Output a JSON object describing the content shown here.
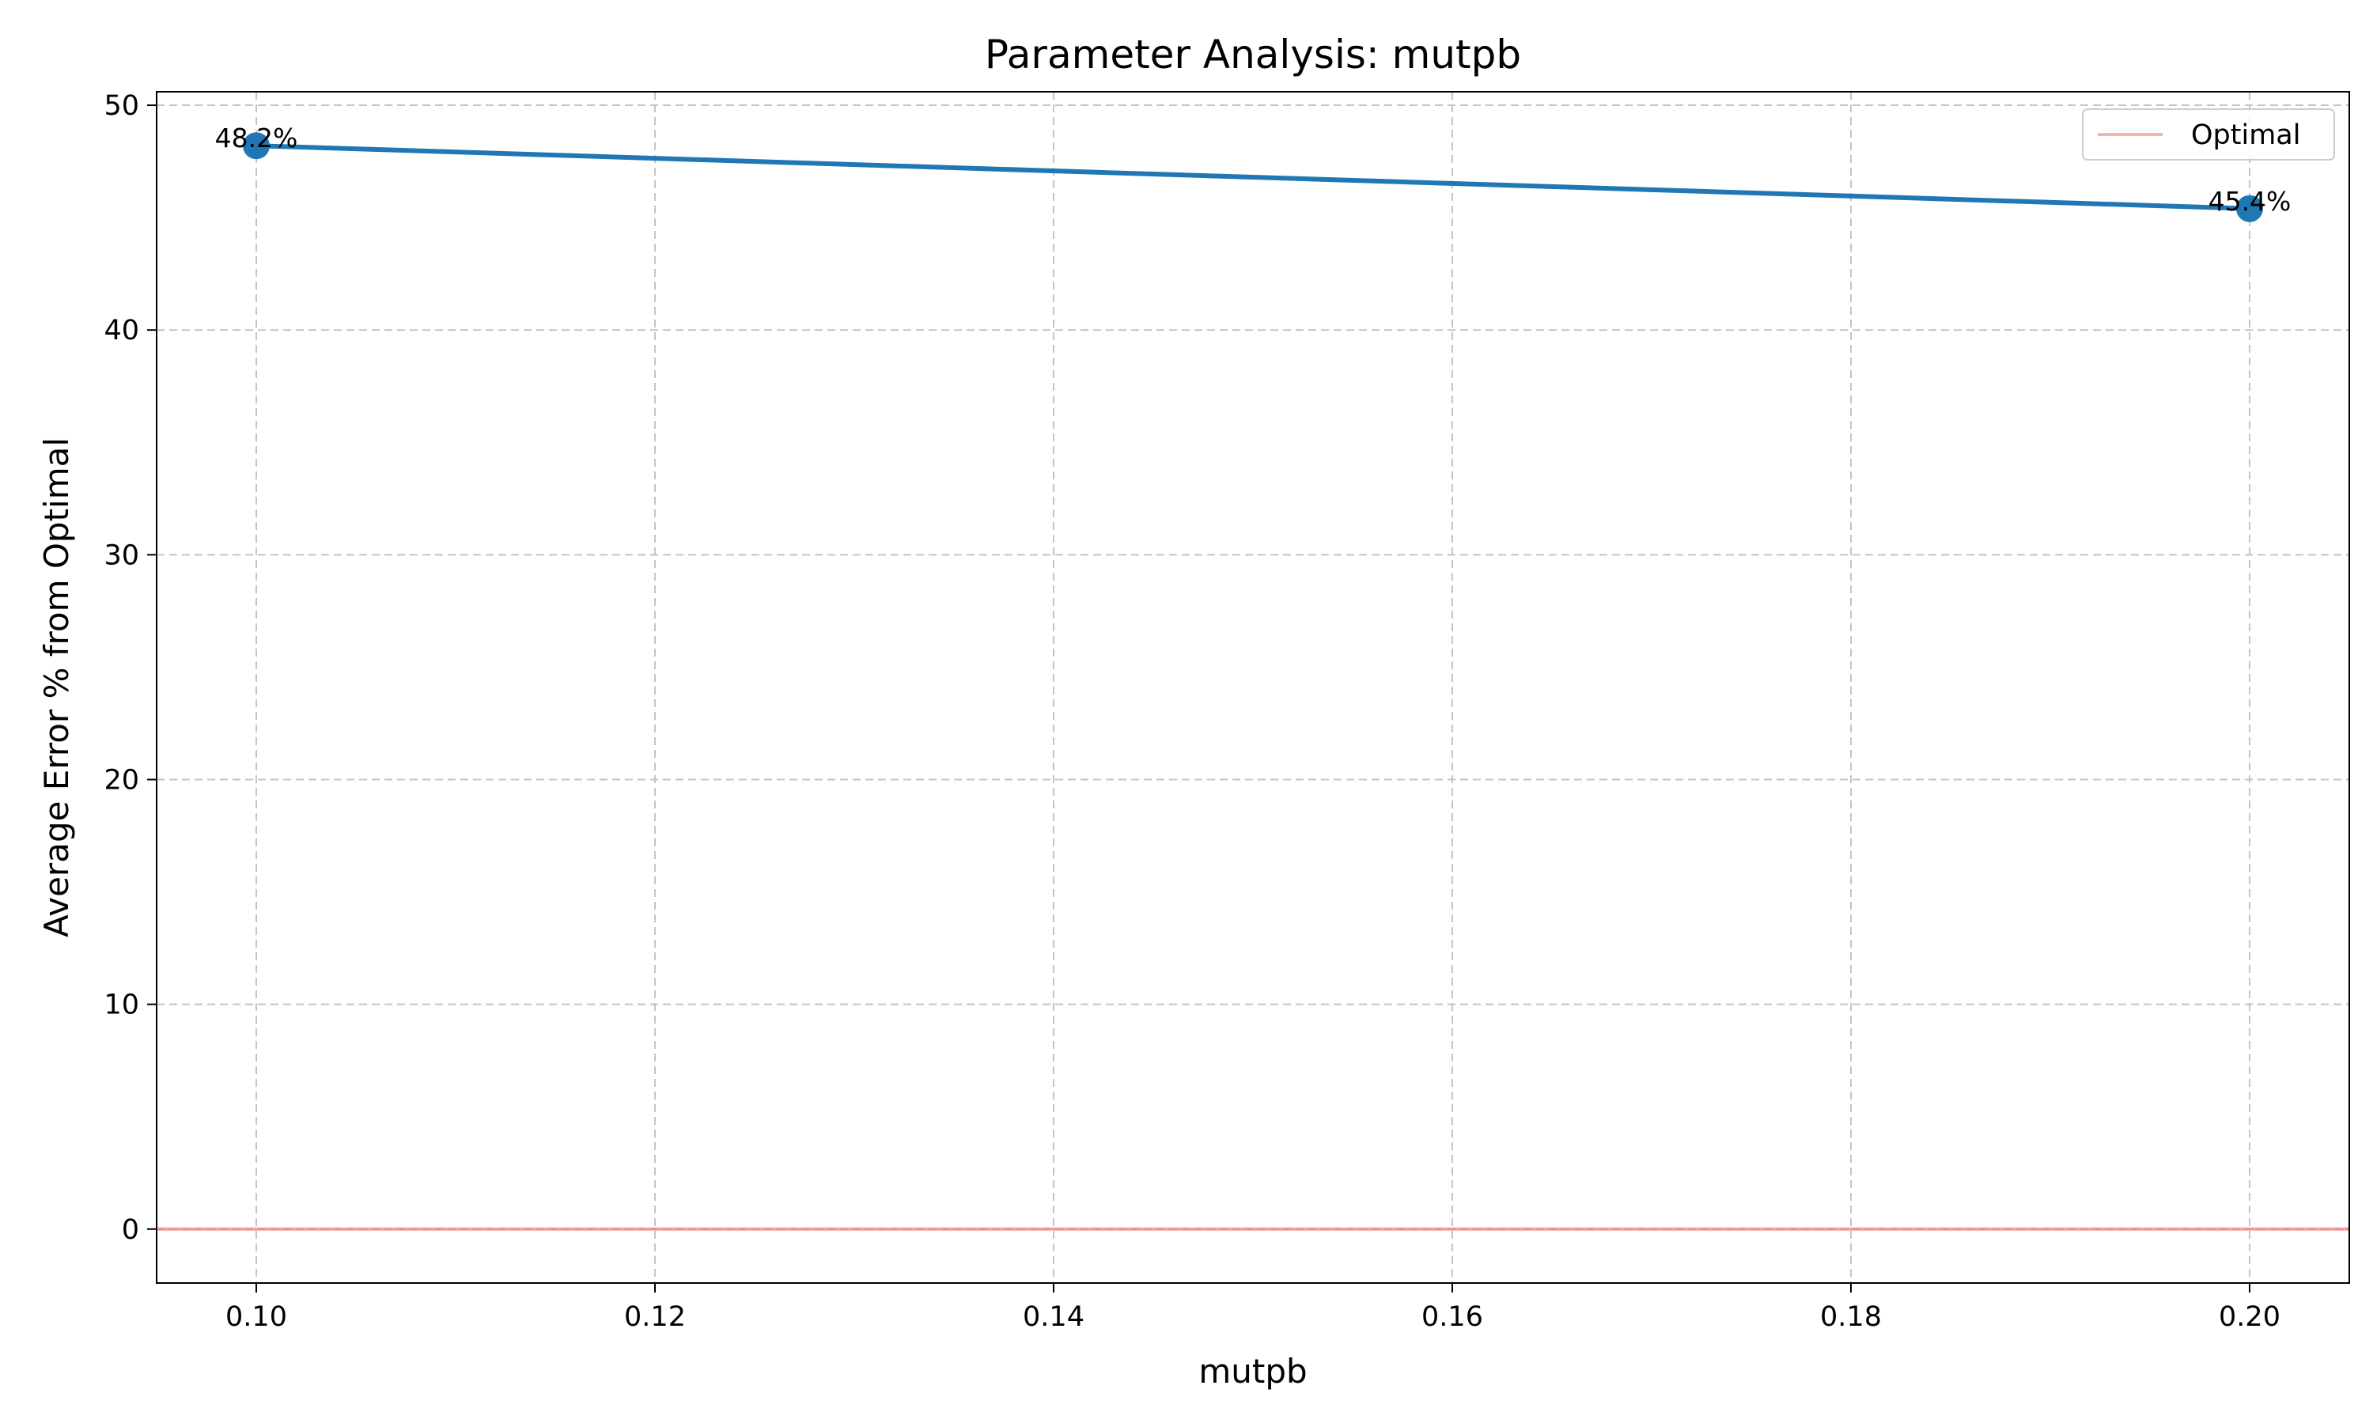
{
  "chart_data": {
    "type": "line",
    "title": "Parameter Analysis: mutpb",
    "xlabel": "mutpb",
    "ylabel": "Average Error % from Optimal",
    "xlim": [
      0.095,
      0.205
    ],
    "ylim": [
      -2.4,
      50.6
    ],
    "xticks": [
      0.1,
      0.12,
      0.14,
      0.16,
      0.18,
      0.2
    ],
    "xtick_labels": [
      "0.10",
      "0.12",
      "0.14",
      "0.16",
      "0.18",
      "0.20"
    ],
    "yticks": [
      0,
      10,
      20,
      30,
      40,
      50
    ],
    "ytick_labels": [
      "0",
      "10",
      "20",
      "30",
      "40",
      "50"
    ],
    "grid": true,
    "grid_style": "dashed",
    "legend_position": "top-right",
    "series": [
      {
        "x": [
          0.1,
          0.2
        ],
        "y": [
          48.2,
          45.4
        ],
        "labels": [
          "48.2%",
          "45.4%"
        ],
        "color": "#1f77b4",
        "marker": "circle"
      }
    ],
    "reference_lines": [
      {
        "name": "Optimal",
        "y": 0,
        "color": "#f08080"
      }
    ]
  }
}
